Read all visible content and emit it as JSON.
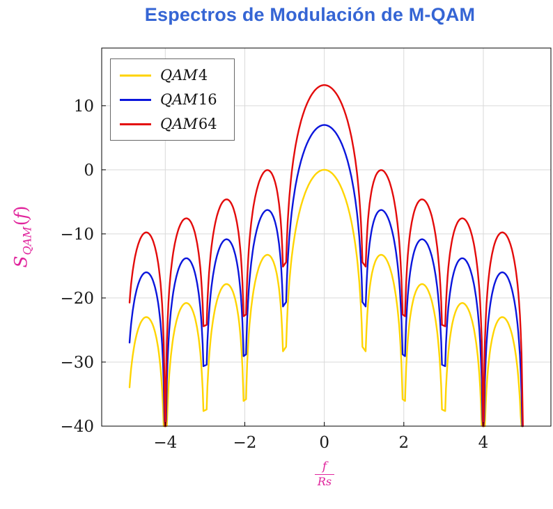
{
  "chart_data": {
    "type": "line",
    "title": "Espectros de Modulación de M-QAM",
    "ylabel": "S_QAM(f)",
    "ylabel_parts": {
      "base": "S",
      "sub": "QAM",
      "open": "(",
      "arg": "f",
      "close": ")"
    },
    "xlabel": "f/Rs",
    "xlabel_parts": {
      "numerator": "f",
      "denominator": "Rs"
    },
    "x_domain": [
      -4.9,
      5.0
    ],
    "xlim": [
      -5.6,
      5.7
    ],
    "ylim": [
      -40,
      19
    ],
    "x_ticks": [
      -4,
      -2,
      0,
      2,
      4
    ],
    "x_tick_labels": [
      "−4",
      "−2",
      "0",
      "2",
      "4"
    ],
    "y_ticks": [
      10,
      0,
      -10,
      -20,
      -30,
      -40
    ],
    "y_tick_labels": [
      "10",
      "0",
      "−10",
      "−20",
      "−30",
      "−40"
    ],
    "grid": true,
    "legend_position": "top-left",
    "clip_db": -40,
    "function": "S(f) = offset_db + 10*log10(sinc^2(f/Rs)),  sinc(u) = sin(pi*u)/(pi*u), clipped at -40 dB",
    "series": [
      {
        "name": "QAM4",
        "color": "#ffd400",
        "offset_db": 0,
        "peak_db": 0
      },
      {
        "name": "QAM16",
        "color": "#0b16dc",
        "offset_db": 6.99,
        "peak_db": 6.99
      },
      {
        "name": "QAM64",
        "color": "#e30b0b",
        "offset_db": 13.22,
        "peak_db": 13.22
      }
    ],
    "colors": {
      "title": "#3565d4",
      "labels": "#e0249c",
      "grid": "#d9d9d9",
      "frame": "#000000",
      "tick_text": "#1a1a1a",
      "legend_border": "#666666"
    }
  }
}
